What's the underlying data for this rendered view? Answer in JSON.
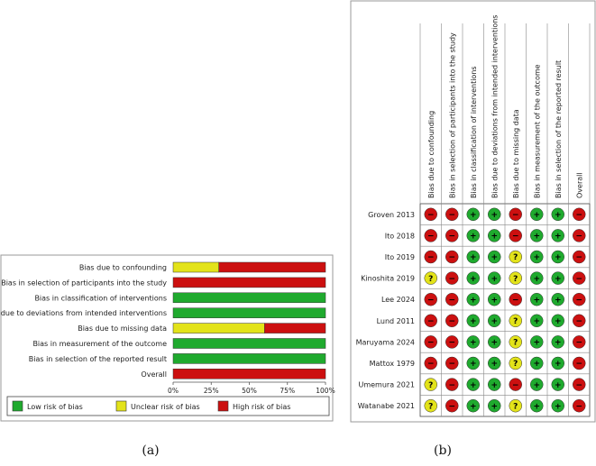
{
  "captions": {
    "a": "(a)",
    "b": "(b)"
  },
  "colors": {
    "low": "#1faa2e",
    "unclear": "#e3e31a",
    "high": "#cc1010"
  },
  "chart_data": [
    {
      "type": "bar",
      "subtype": "stacked-horizontal-percent",
      "panel": "a",
      "categories": [
        "Bias due to confounding",
        "Bias in selection of participants into the study",
        "Bias in classification of interventions",
        "Bias due to deviations from intended interventions",
        "Bias due to missing data",
        "Bias in measurement of the outcome",
        "Bias in selection of the reported result",
        "Overall"
      ],
      "series": [
        {
          "name": "Low risk of bias",
          "key": "low",
          "values": [
            0,
            0,
            100,
            100,
            0,
            100,
            100,
            0
          ]
        },
        {
          "name": "Unclear risk of bias",
          "key": "unclear",
          "values": [
            30,
            0,
            0,
            0,
            60,
            0,
            0,
            0
          ]
        },
        {
          "name": "High risk of bias",
          "key": "high",
          "values": [
            70,
            100,
            0,
            0,
            40,
            0,
            0,
            100
          ]
        }
      ],
      "xticks": [
        "0%",
        "25%",
        "50%",
        "75%",
        "100%"
      ],
      "xlim": [
        0,
        100
      ],
      "legend": [
        "Low risk of bias",
        "Unclear risk of bias",
        "High risk of bias"
      ]
    },
    {
      "type": "table",
      "subtype": "traffic-light",
      "panel": "b",
      "columns": [
        "Bias due to confounding",
        "Bias in selection of participants into the study",
        "Bias in classification of interventions",
        "Bias due to deviations from intended interventions",
        "Bias due to missing data",
        "Bias in measurement of the outcome",
        "Bias in selection of the reported result",
        "Overall"
      ],
      "studies": [
        {
          "name": "Groven 2013",
          "judgements": [
            "high",
            "high",
            "low",
            "low",
            "high",
            "low",
            "low",
            "high"
          ]
        },
        {
          "name": "Ito 2018",
          "judgements": [
            "high",
            "high",
            "low",
            "low",
            "high",
            "low",
            "low",
            "high"
          ]
        },
        {
          "name": "Ito 2019",
          "judgements": [
            "high",
            "high",
            "low",
            "low",
            "unclear",
            "low",
            "low",
            "high"
          ]
        },
        {
          "name": "Kinoshita 2019",
          "judgements": [
            "unclear",
            "high",
            "low",
            "low",
            "unclear",
            "low",
            "low",
            "high"
          ]
        },
        {
          "name": "Lee 2024",
          "judgements": [
            "high",
            "high",
            "low",
            "low",
            "high",
            "low",
            "low",
            "high"
          ]
        },
        {
          "name": "Lund 2011",
          "judgements": [
            "high",
            "high",
            "low",
            "low",
            "unclear",
            "low",
            "low",
            "high"
          ]
        },
        {
          "name": "Maruyama 2024",
          "judgements": [
            "high",
            "high",
            "low",
            "low",
            "unclear",
            "low",
            "low",
            "high"
          ]
        },
        {
          "name": "Mattox 1979",
          "judgements": [
            "high",
            "high",
            "low",
            "low",
            "unclear",
            "low",
            "low",
            "high"
          ]
        },
        {
          "name": "Umemura 2021",
          "judgements": [
            "unclear",
            "high",
            "low",
            "low",
            "high",
            "low",
            "low",
            "high"
          ]
        },
        {
          "name": "Watanabe 2021",
          "judgements": [
            "unclear",
            "high",
            "low",
            "low",
            "unclear",
            "low",
            "low",
            "high"
          ]
        }
      ],
      "symbols": {
        "low": "+",
        "unclear": "?",
        "high": "−"
      }
    }
  ]
}
